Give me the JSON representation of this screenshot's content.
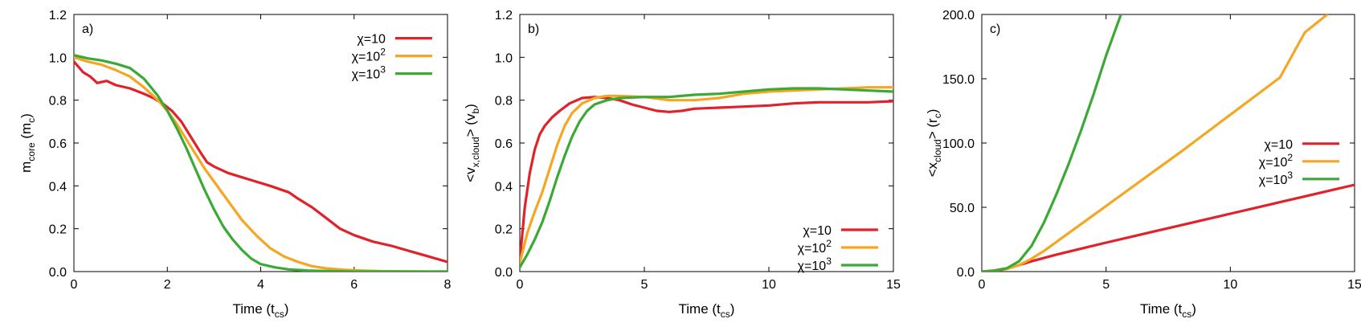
{
  "colors": {
    "chi10": "#e0222b",
    "chi100": "#f5a623",
    "chi1000": "#3aa935",
    "axis": "#000000"
  },
  "chart_data": [
    {
      "type": "line",
      "panel_label": "a)",
      "xlabel": "Time (t",
      "xlabel_sub": "cs",
      "xlabel_tail": ")",
      "ylabel": "m",
      "ylabel_sub": "core",
      "ylabel_tail": " (m",
      "ylabel_sub2": "c",
      "ylabel_end": ")",
      "xlim": [
        0,
        8
      ],
      "ylim": [
        0,
        1.2
      ],
      "xticks": [
        "0",
        "2",
        "4",
        "6",
        "8"
      ],
      "xtick_values": [
        0,
        2,
        4,
        6,
        8
      ],
      "yticks": [
        "0.0",
        "0.2",
        "0.4",
        "0.6",
        "0.8",
        "1.0",
        "1.2"
      ],
      "ytick_values": [
        0,
        0.2,
        0.4,
        0.6,
        0.8,
        1.0,
        1.2
      ],
      "legend_position": "top-right",
      "series": [
        {
          "name": "χ=10",
          "base": "χ=10",
          "sup": "",
          "color": "#e0222b",
          "x": [
            0,
            0.2,
            0.35,
            0.5,
            0.7,
            0.9,
            1.2,
            1.5,
            1.7,
            1.9,
            2.1,
            2.3,
            2.5,
            2.7,
            2.85,
            3.0,
            3.3,
            3.6,
            3.9,
            4.2,
            4.4,
            4.6,
            4.8,
            5.1,
            5.4,
            5.7,
            6.0,
            6.4,
            6.8,
            7.2,
            7.6,
            8.0
          ],
          "y": [
            0.98,
            0.93,
            0.91,
            0.88,
            0.89,
            0.87,
            0.855,
            0.83,
            0.81,
            0.785,
            0.75,
            0.7,
            0.63,
            0.56,
            0.51,
            0.49,
            0.46,
            0.44,
            0.42,
            0.4,
            0.385,
            0.37,
            0.34,
            0.3,
            0.25,
            0.2,
            0.17,
            0.14,
            0.12,
            0.095,
            0.07,
            0.045
          ]
        },
        {
          "name": "χ=10^2",
          "base": "χ=10",
          "sup": "2",
          "color": "#f5a623",
          "x": [
            0,
            0.3,
            0.6,
            0.9,
            1.2,
            1.5,
            1.8,
            2.0,
            2.2,
            2.4,
            2.6,
            2.8,
            3.0,
            3.3,
            3.6,
            3.9,
            4.2,
            4.5,
            4.8,
            5.1,
            5.4,
            5.8,
            6.2,
            6.6,
            7.0,
            7.5,
            8.0
          ],
          "y": [
            1.0,
            0.98,
            0.965,
            0.94,
            0.91,
            0.86,
            0.8,
            0.75,
            0.69,
            0.62,
            0.55,
            0.48,
            0.42,
            0.33,
            0.24,
            0.17,
            0.11,
            0.07,
            0.045,
            0.025,
            0.015,
            0.008,
            0.004,
            0.002,
            0.001,
            0.0,
            0.0
          ]
        },
        {
          "name": "χ=10^3",
          "base": "χ=10",
          "sup": "3",
          "color": "#3aa935",
          "x": [
            0,
            0.3,
            0.6,
            0.9,
            1.2,
            1.5,
            1.8,
            2.0,
            2.2,
            2.4,
            2.6,
            2.8,
            3.0,
            3.2,
            3.4,
            3.6,
            3.8,
            4.0,
            4.3,
            4.6,
            5.0,
            5.5,
            6.0,
            7.0,
            8.0
          ],
          "y": [
            1.01,
            0.995,
            0.985,
            0.97,
            0.95,
            0.9,
            0.82,
            0.75,
            0.67,
            0.58,
            0.48,
            0.38,
            0.29,
            0.21,
            0.15,
            0.1,
            0.06,
            0.035,
            0.02,
            0.01,
            0.005,
            0.002,
            0.0,
            0.0,
            0.0
          ]
        }
      ]
    },
    {
      "type": "line",
      "panel_label": "b)",
      "xlabel": "Time (t",
      "xlabel_sub": "cs",
      "xlabel_tail": ")",
      "ylabel": "<v",
      "ylabel_sub": "x,cloud",
      "ylabel_tail": "> (v",
      "ylabel_sub2": "b",
      "ylabel_end": ")",
      "xlim": [
        0,
        15
      ],
      "ylim": [
        0,
        1.2
      ],
      "xticks": [
        "0",
        "5",
        "10",
        "15"
      ],
      "xtick_values": [
        0,
        5,
        10,
        15
      ],
      "yticks": [
        "0.0",
        "0.2",
        "0.4",
        "0.6",
        "0.8",
        "1.0",
        "1.2"
      ],
      "ytick_values": [
        0,
        0.2,
        0.4,
        0.6,
        0.8,
        1.0,
        1.2
      ],
      "legend_position": "bottom-right",
      "series": [
        {
          "name": "χ=10",
          "base": "χ=10",
          "sup": "",
          "color": "#e0222b",
          "x": [
            0,
            0.2,
            0.4,
            0.6,
            0.8,
            1.0,
            1.3,
            1.6,
            2.0,
            2.5,
            3.0,
            3.5,
            4.0,
            4.5,
            5.0,
            5.5,
            6.0,
            6.5,
            7.0,
            8.0,
            9.0,
            10.0,
            11.0,
            12.0,
            13.0,
            14.0,
            15.0
          ],
          "y": [
            0.05,
            0.3,
            0.46,
            0.57,
            0.64,
            0.68,
            0.72,
            0.75,
            0.785,
            0.81,
            0.815,
            0.81,
            0.8,
            0.78,
            0.765,
            0.75,
            0.745,
            0.75,
            0.76,
            0.765,
            0.77,
            0.775,
            0.785,
            0.79,
            0.79,
            0.79,
            0.795
          ]
        },
        {
          "name": "χ=10^2",
          "base": "χ=10",
          "sup": "2",
          "color": "#f5a623",
          "x": [
            0,
            0.3,
            0.6,
            0.9,
            1.2,
            1.5,
            1.8,
            2.1,
            2.5,
            3.0,
            3.5,
            4.0,
            5.0,
            6.0,
            7.0,
            8.0,
            9.0,
            10.0,
            11.0,
            12.0,
            13.0,
            14.0,
            15.0
          ],
          "y": [
            0.04,
            0.18,
            0.28,
            0.37,
            0.48,
            0.59,
            0.68,
            0.74,
            0.785,
            0.81,
            0.82,
            0.82,
            0.815,
            0.8,
            0.8,
            0.81,
            0.83,
            0.84,
            0.845,
            0.85,
            0.855,
            0.86,
            0.86
          ]
        },
        {
          "name": "χ=10^3",
          "base": "χ=10",
          "sup": "3",
          "color": "#3aa935",
          "x": [
            0,
            0.3,
            0.6,
            0.9,
            1.2,
            1.5,
            1.8,
            2.1,
            2.4,
            2.7,
            3.0,
            3.5,
            4.0,
            5.0,
            6.0,
            7.0,
            8.0,
            9.0,
            10.0,
            11.0,
            12.0,
            13.0,
            14.0,
            15.0
          ],
          "y": [
            0.02,
            0.08,
            0.15,
            0.23,
            0.33,
            0.44,
            0.54,
            0.63,
            0.7,
            0.75,
            0.78,
            0.8,
            0.81,
            0.815,
            0.815,
            0.825,
            0.83,
            0.84,
            0.85,
            0.855,
            0.855,
            0.85,
            0.845,
            0.84
          ]
        }
      ]
    },
    {
      "type": "line",
      "panel_label": "c)",
      "xlabel": "Time (t",
      "xlabel_sub": "cs",
      "xlabel_tail": ")",
      "ylabel": "<x",
      "ylabel_sub": "cloud",
      "ylabel_tail": "> (r",
      "ylabel_sub2": "c",
      "ylabel_end": ")",
      "xlim": [
        0,
        15
      ],
      "ylim": [
        0,
        200
      ],
      "xticks": [
        "0",
        "5",
        "10",
        "15"
      ],
      "xtick_values": [
        0,
        5,
        10,
        15
      ],
      "yticks": [
        "0.0",
        "50.0",
        "100.0",
        "150.0",
        "200.0"
      ],
      "ytick_values": [
        0,
        50,
        100,
        150,
        200
      ],
      "legend_position": "center-right",
      "series": [
        {
          "name": "χ=10",
          "base": "χ=10",
          "sup": "",
          "color": "#e0222b",
          "x": [
            0,
            0.5,
            1.0,
            1.5,
            2.0,
            3.0,
            4.0,
            5.0,
            6.0,
            7.0,
            8.0,
            9.0,
            10.0,
            11.0,
            12.0,
            13.0,
            14.0,
            15.0
          ],
          "y": [
            0,
            0.8,
            2.5,
            5.0,
            8.0,
            13.2,
            17.9,
            22.5,
            27.0,
            31.5,
            36.0,
            40.5,
            45.0,
            49.5,
            54.0,
            58.5,
            63.0,
            67.5
          ]
        },
        {
          "name": "χ=10^2",
          "base": "χ=10",
          "sup": "2",
          "color": "#f5a623",
          "x": [
            0,
            0.5,
            1.0,
            1.5,
            2.0,
            2.5,
            3.0,
            4.0,
            5.0,
            6.0,
            7.0,
            8.0,
            9.0,
            10.0,
            11.0,
            12.0,
            13.0,
            13.9
          ],
          "y": [
            0,
            0.5,
            2.0,
            5.0,
            10.0,
            16.0,
            23.0,
            37.0,
            51.0,
            65.0,
            79.0,
            93.0,
            107.5,
            122.0,
            136.5,
            151.0,
            186.0,
            200.0
          ]
        },
        {
          "name": "χ=10^3",
          "base": "χ=10",
          "sup": "3",
          "color": "#3aa935",
          "x": [
            0,
            0.5,
            1.0,
            1.5,
            2.0,
            2.5,
            3.0,
            3.5,
            4.0,
            4.5,
            5.0,
            5.6
          ],
          "y": [
            0,
            0.5,
            2.5,
            8.0,
            20.0,
            38.0,
            60.0,
            84.0,
            110.0,
            138.0,
            168.0,
            200.0
          ]
        }
      ]
    }
  ]
}
